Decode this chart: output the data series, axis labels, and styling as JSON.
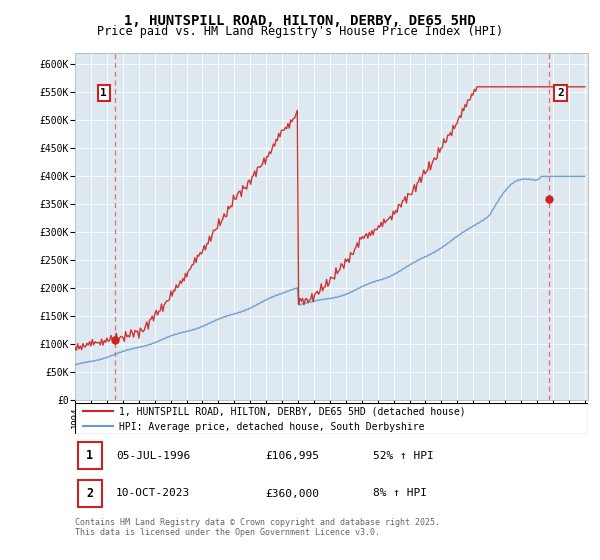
{
  "title": "1, HUNTSPILL ROAD, HILTON, DERBY, DE65 5HD",
  "subtitle": "Price paid vs. HM Land Registry's House Price Index (HPI)",
  "title_fontsize": 10,
  "subtitle_fontsize": 8.5,
  "ylabel_ticks": [
    "£0",
    "£50K",
    "£100K",
    "£150K",
    "£200K",
    "£250K",
    "£300K",
    "£350K",
    "£400K",
    "£450K",
    "£500K",
    "£550K",
    "£600K"
  ],
  "ytick_values": [
    0,
    50000,
    100000,
    150000,
    200000,
    250000,
    300000,
    350000,
    400000,
    450000,
    500000,
    550000,
    600000
  ],
  "ylim": [
    0,
    620000
  ],
  "xlim_start": 1994.0,
  "xlim_end": 2026.2,
  "sale1_x": 1996.508,
  "sale1_y": 106995,
  "sale1_label": "1",
  "sale2_x": 2023.769,
  "sale2_y": 360000,
  "sale2_label": "2",
  "hpi_color": "#6699cc",
  "price_color": "#cc2222",
  "vline_color": "#ee5555",
  "bg_color": "#dde8f0",
  "grid_color": "#ffffff",
  "legend_label_price": "1, HUNTSPILL ROAD, HILTON, DERBY, DE65 5HD (detached house)",
  "legend_label_hpi": "HPI: Average price, detached house, South Derbyshire",
  "table_row1": [
    "1",
    "05-JUL-1996",
    "£106,995",
    "52% ↑ HPI"
  ],
  "table_row2": [
    "2",
    "10-OCT-2023",
    "£360,000",
    "8% ↑ HPI"
  ],
  "footnote": "Contains HM Land Registry data © Crown copyright and database right 2025.\nThis data is licensed under the Open Government Licence v3.0."
}
